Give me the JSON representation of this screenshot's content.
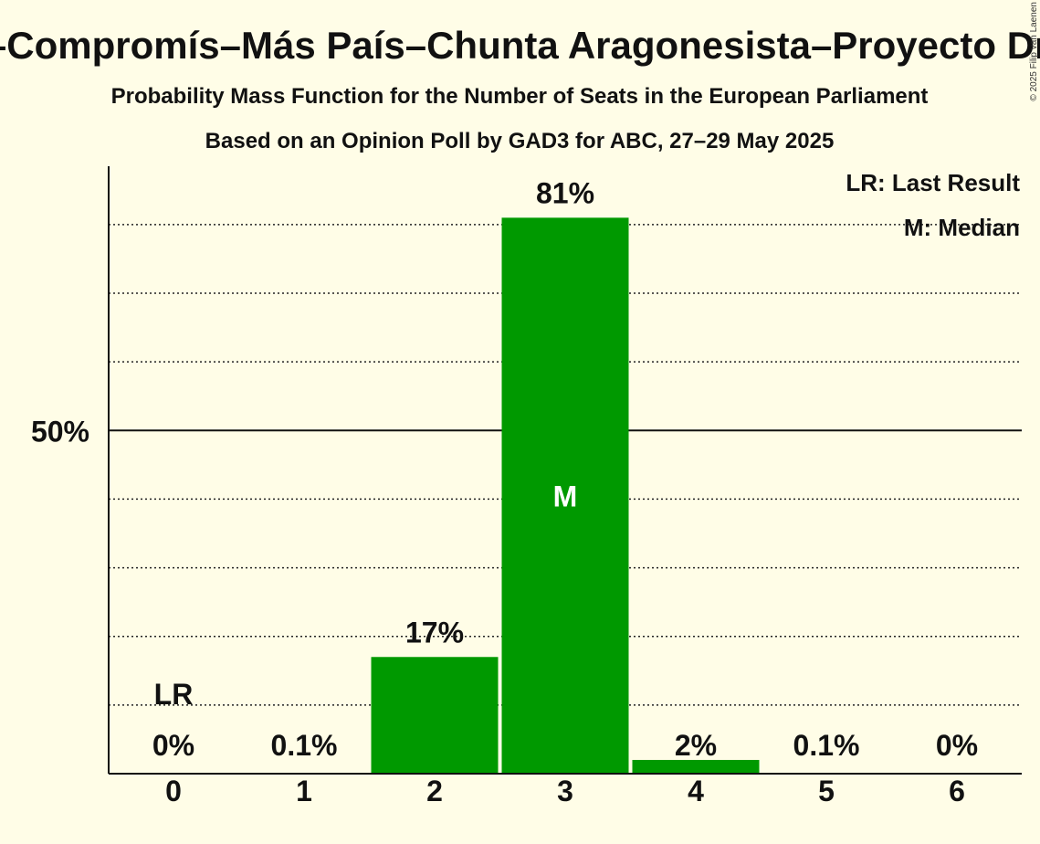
{
  "chart_data": {
    "type": "bar",
    "title": "Sumar–Catalunya en Comú–Més–Compromís–Más País–Chunta Aragonesista–Proyecto Drago–Iniciativa del Poble Valencià",
    "subtitle": "Probability Mass Function for the Number of Seats in the European Parliament",
    "subtitle2": "Based on an Opinion Poll by GAD3 for ABC, 27–29 May 2025",
    "categories": [
      "0",
      "1",
      "2",
      "3",
      "4",
      "5",
      "6"
    ],
    "values": [
      0,
      0.1,
      17,
      81,
      2,
      0.1,
      0
    ],
    "value_labels": [
      "0%",
      "0.1%",
      "17%",
      "81%",
      "2%",
      "0.1%",
      "0%"
    ],
    "ylim": [
      0,
      88.5
    ],
    "y_tick_value": 50,
    "y_tick_label": "50%",
    "gridlines": [
      10,
      20,
      30,
      40,
      60,
      70,
      80
    ],
    "last_result_index": 0,
    "last_result_marker": "LR",
    "median_index": 3,
    "median_marker": "M",
    "legend": [
      "LR: Last Result",
      "M: Median"
    ],
    "legend_position": "top-right",
    "copyright": "© 2025 Filip van Laenen",
    "bar_color": "#009900",
    "background_color": "#fffde7"
  }
}
